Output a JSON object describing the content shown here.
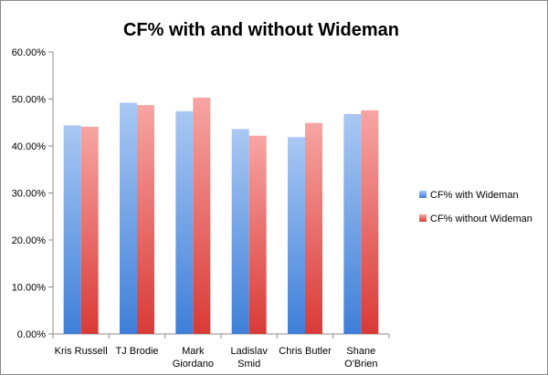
{
  "chart_data": {
    "type": "bar",
    "title": "CF% with and without Wideman",
    "categories": [
      [
        "Kris Russell"
      ],
      [
        "TJ Brodie"
      ],
      [
        "Mark",
        "Giordano"
      ],
      [
        "Ladislav",
        "Smid"
      ],
      [
        "Chris Butler"
      ],
      [
        "Shane",
        "O'Brien"
      ]
    ],
    "series": [
      {
        "name": "CF% with Wideman",
        "values": [
          44.4,
          49.2,
          47.4,
          43.6,
          41.9,
          46.8
        ],
        "color_top": "#a9c8f3",
        "color_bottom": "#3f7fd9"
      },
      {
        "name": "CF% without Wideman",
        "values": [
          44.1,
          48.7,
          50.3,
          42.2,
          44.9,
          47.6
        ],
        "color_top": "#f7a5a3",
        "color_bottom": "#d93a36"
      }
    ],
    "yticks": [
      "0.00%",
      "10.00%",
      "20.00%",
      "30.00%",
      "40.00%",
      "50.00%",
      "60.00%"
    ],
    "ylim": [
      0,
      60
    ],
    "grid": false,
    "legend_position": "right"
  }
}
